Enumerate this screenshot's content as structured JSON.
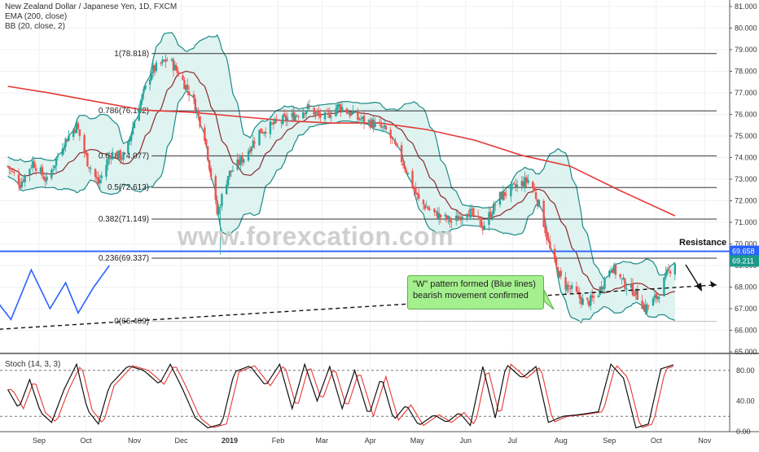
{
  "chart_data": [
    {
      "type": "candlestick",
      "title": "New Zealand Dollar / Japanese Yen, 1D, FXCM",
      "indicators": [
        "EMA (200, close)",
        "BB (20, close, 2)"
      ],
      "x_labels": [
        "Sep",
        "Oct",
        "Nov",
        "Dec",
        "2019",
        "Feb",
        "Mar",
        "Apr",
        "May",
        "Jun",
        "Jul",
        "Aug",
        "Sep",
        "Oct",
        "Nov"
      ],
      "y_ticks": [
        "81.000",
        "80.000",
        "79.000",
        "78.000",
        "77.000",
        "76.000",
        "75.000",
        "74.000",
        "73.000",
        "72.000",
        "71.000",
        "70.000",
        "69.000",
        "68.000",
        "67.000",
        "66.000",
        "65.000"
      ],
      "ylim": [
        65,
        81.3
      ],
      "price_path": [
        {
          "x": "Aug 20",
          "y": 73.6
        },
        {
          "x": "Aug 28",
          "y": 72.8
        },
        {
          "x": "Sep 5",
          "y": 73.8
        },
        {
          "x": "Sep 14",
          "y": 72.9
        },
        {
          "x": "Sep 24",
          "y": 74.6
        },
        {
          "x": "Oct 3",
          "y": 75.5
        },
        {
          "x": "Oct 10",
          "y": 73.8
        },
        {
          "x": "Oct 17",
          "y": 72.8
        },
        {
          "x": "Oct 25",
          "y": 74.2
        },
        {
          "x": "Nov 3",
          "y": 74.0
        },
        {
          "x": "Nov 10",
          "y": 76.0
        },
        {
          "x": "Nov 20",
          "y": 78.0
        },
        {
          "x": "Dec 1",
          "y": 78.6
        },
        {
          "x": "Dec 8",
          "y": 77.8
        },
        {
          "x": "Dec 16",
          "y": 76.8
        },
        {
          "x": "Dec 24",
          "y": 75.0
        },
        {
          "x": "Jan 1",
          "y": 71.4
        },
        {
          "x": "Jan 8",
          "y": 73.2
        },
        {
          "x": "Jan 18",
          "y": 74.0
        },
        {
          "x": "Jan 28",
          "y": 75.2
        },
        {
          "x": "Feb 8",
          "y": 75.6
        },
        {
          "x": "Feb 18",
          "y": 75.9
        },
        {
          "x": "Feb 28",
          "y": 76.3
        },
        {
          "x": "Mar 10",
          "y": 75.8
        },
        {
          "x": "Mar 20",
          "y": 76.4
        },
        {
          "x": "Apr 1",
          "y": 75.8
        },
        {
          "x": "Apr 10",
          "y": 75.6
        },
        {
          "x": "Apr 20",
          "y": 75.2
        },
        {
          "x": "May 1",
          "y": 73.6
        },
        {
          "x": "May 10",
          "y": 72.0
        },
        {
          "x": "May 20",
          "y": 71.4
        },
        {
          "x": "Jun 1",
          "y": 71.0
        },
        {
          "x": "Jun 10",
          "y": 71.6
        },
        {
          "x": "Jun 20",
          "y": 70.8
        },
        {
          "x": "Jul 1",
          "y": 72.2
        },
        {
          "x": "Jul 10",
          "y": 72.6
        },
        {
          "x": "Jul 20",
          "y": 73.0
        },
        {
          "x": "Jul 27",
          "y": 71.6
        },
        {
          "x": "Aug 3",
          "y": 69.4
        },
        {
          "x": "Aug 10",
          "y": 68.2
        },
        {
          "x": "Aug 17",
          "y": 67.8
        },
        {
          "x": "Aug 25",
          "y": 67.2
        },
        {
          "x": "Sep 1",
          "y": 67.6
        },
        {
          "x": "Sep 10",
          "y": 69.0
        },
        {
          "x": "Sep 18",
          "y": 68.2
        },
        {
          "x": "Sep 25",
          "y": 67.8
        },
        {
          "x": "Oct 2",
          "y": 67.0
        },
        {
          "x": "Oct 10",
          "y": 67.6
        },
        {
          "x": "Oct 16",
          "y": 68.6
        },
        {
          "x": "Oct 21",
          "y": 69.2
        }
      ],
      "ema200": [
        {
          "x": "Aug 20",
          "y": 77.3
        },
        {
          "x": "Sep 15",
          "y": 77.0
        },
        {
          "x": "Oct 15",
          "y": 76.6
        },
        {
          "x": "Nov 15",
          "y": 76.2
        },
        {
          "x": "Dec 15",
          "y": 76.1
        },
        {
          "x": "Jan 15",
          "y": 75.9
        },
        {
          "x": "Feb 15",
          "y": 75.7
        },
        {
          "x": "Mar 15",
          "y": 75.6
        },
        {
          "x": "Apr 15",
          "y": 75.6
        },
        {
          "x": "May 15",
          "y": 75.3
        },
        {
          "x": "Jun 15",
          "y": 74.8
        },
        {
          "x": "Jul 15",
          "y": 74.1
        },
        {
          "x": "Aug 15",
          "y": 73.6
        },
        {
          "x": "Sep 15",
          "y": 72.5
        },
        {
          "x": "Oct 21",
          "y": 71.3
        }
      ],
      "fib_levels": [
        {
          "label": "1(78.818)",
          "value": 78.818
        },
        {
          "label": "0.786(76.162)",
          "value": 76.162
        },
        {
          "label": "0.618(74.077)",
          "value": 74.077
        },
        {
          "label": "0.5(72.613)",
          "value": 72.613
        },
        {
          "label": "0.382(71.149)",
          "value": 71.149
        },
        {
          "label": "0.236(69.337)",
          "value": 69.337
        },
        {
          "label": "0(66.409)",
          "value": 66.409
        }
      ],
      "resistance_level": 69.658,
      "price_tags": [
        {
          "label": "69.658",
          "value": 69.658,
          "color": "#2962ff"
        },
        {
          "label": "69.211",
          "value": 69.211,
          "color": "#1a9a8a"
        }
      ],
      "w_pattern": [
        {
          "x": "Aug 6",
          "y": 68.0
        },
        {
          "x": "Aug 22",
          "y": 66.5
        },
        {
          "x": "Sep 4",
          "y": 68.8
        },
        {
          "x": "Sep 16",
          "y": 67.0
        },
        {
          "x": "Sep 26",
          "y": 68.2
        },
        {
          "x": "Oct 4",
          "y": 66.8
        },
        {
          "x": "Oct 14",
          "y": 68.0
        },
        {
          "x": "Oct 24",
          "y": 69.0
        }
      ],
      "trendline": [
        {
          "x": "Aug 1",
          "y": 66.0
        },
        {
          "x": "Oct 31",
          "y": 68.0
        }
      ],
      "annotations": {
        "resistance": "Resistance",
        "callout_line1": "\"W\" pattern formed (Blue lines)",
        "callout_line2": "bearish movement confirmed",
        "watermark": "www.forexcation.com"
      },
      "colors": {
        "candle_up": "#26a69a",
        "candle_down": "#ef5350",
        "bb_band": "#1a8a86",
        "bb_fill": "#d9f1ee",
        "bb_basis": "#8b2a2a",
        "ema": "#e53935",
        "w_pattern": "#2962ff",
        "resistance": "#2962ff"
      }
    },
    {
      "type": "line",
      "title": "Stoch (14, 3, 3)",
      "y_ticks": [
        "80.00",
        "40.00",
        "0.00"
      ],
      "ylim": [
        0,
        100
      ],
      "overbought": 80,
      "oversold": 20,
      "k_path": [
        {
          "x": "Aug 20",
          "y": 55
        },
        {
          "x": "Aug 27",
          "y": 30
        },
        {
          "x": "Sep 3",
          "y": 68
        },
        {
          "x": "Sep 10",
          "y": 25
        },
        {
          "x": "Sep 17",
          "y": 12
        },
        {
          "x": "Sep 25",
          "y": 55
        },
        {
          "x": "Oct 3",
          "y": 88
        },
        {
          "x": "Oct 10",
          "y": 28
        },
        {
          "x": "Oct 17",
          "y": 10
        },
        {
          "x": "Oct 24",
          "y": 60
        },
        {
          "x": "Nov 5",
          "y": 86
        },
        {
          "x": "Nov 15",
          "y": 80
        },
        {
          "x": "Nov 25",
          "y": 62
        },
        {
          "x": "Dec 2",
          "y": 88
        },
        {
          "x": "Dec 10",
          "y": 55
        },
        {
          "x": "Dec 18",
          "y": 18
        },
        {
          "x": "Dec 26",
          "y": 5
        },
        {
          "x": "Jan 4",
          "y": 10
        },
        {
          "x": "Jan 12",
          "y": 78
        },
        {
          "x": "Jan 22",
          "y": 86
        },
        {
          "x": "Feb 1",
          "y": 60
        },
        {
          "x": "Feb 10",
          "y": 88
        },
        {
          "x": "Feb 18",
          "y": 30
        },
        {
          "x": "Feb 26",
          "y": 88
        },
        {
          "x": "Mar 6",
          "y": 40
        },
        {
          "x": "Mar 14",
          "y": 85
        },
        {
          "x": "Mar 22",
          "y": 30
        },
        {
          "x": "Mar 30",
          "y": 80
        },
        {
          "x": "Apr 8",
          "y": 20
        },
        {
          "x": "Apr 16",
          "y": 72
        },
        {
          "x": "Apr 24",
          "y": 15
        },
        {
          "x": "May 2",
          "y": 35
        },
        {
          "x": "May 10",
          "y": 8
        },
        {
          "x": "May 20",
          "y": 22
        },
        {
          "x": "May 28",
          "y": 12
        },
        {
          "x": "Jun 5",
          "y": 25
        },
        {
          "x": "Jun 12",
          "y": 8
        },
        {
          "x": "Jun 20",
          "y": 85
        },
        {
          "x": "Jun 28",
          "y": 18
        },
        {
          "x": "Jul 5",
          "y": 88
        },
        {
          "x": "Jul 15",
          "y": 70
        },
        {
          "x": "Jul 24",
          "y": 85
        },
        {
          "x": "Aug 1",
          "y": 12
        },
        {
          "x": "Aug 10",
          "y": 20
        },
        {
          "x": "Aug 20",
          "y": 22
        },
        {
          "x": "Sep 2",
          "y": 26
        },
        {
          "x": "Sep 10",
          "y": 88
        },
        {
          "x": "Sep 18",
          "y": 70
        },
        {
          "x": "Sep 26",
          "y": 5
        },
        {
          "x": "Oct 4",
          "y": 10
        },
        {
          "x": "Oct 12",
          "y": 82
        },
        {
          "x": "Oct 21",
          "y": 88
        }
      ]
    }
  ]
}
